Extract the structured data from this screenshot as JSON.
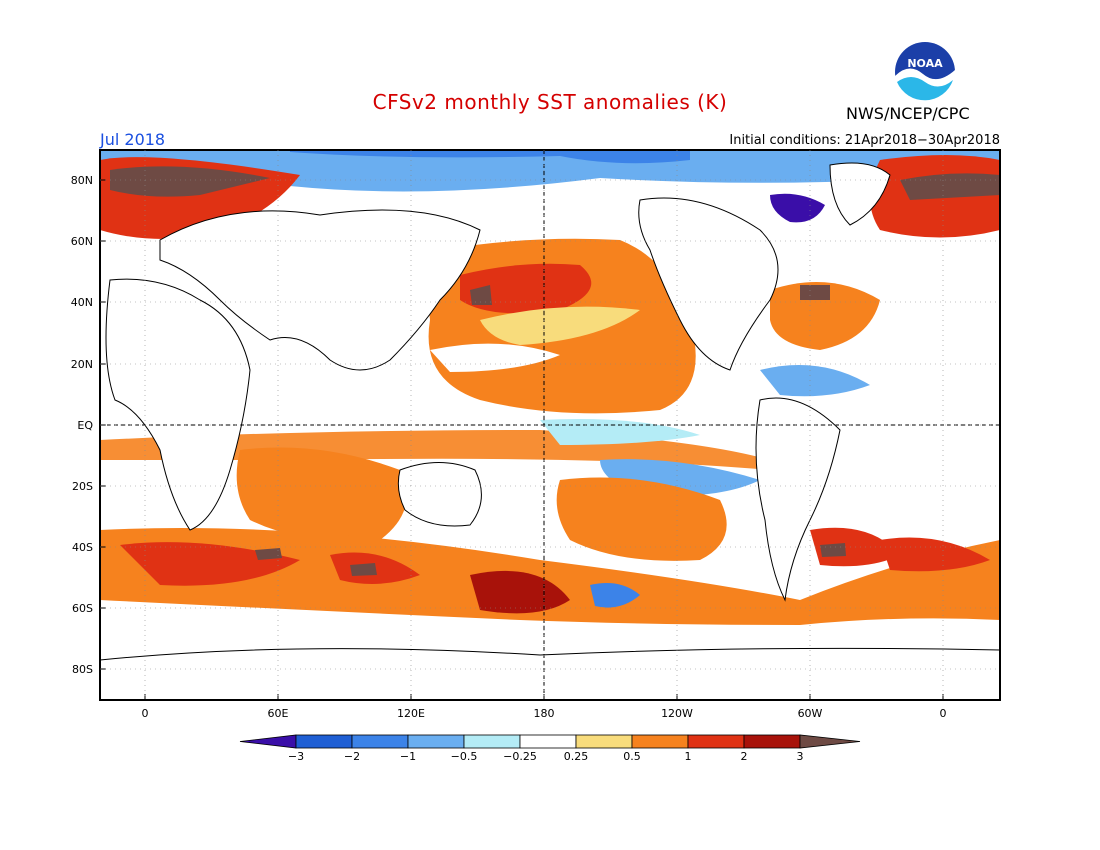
{
  "header": {
    "title": "CFSv2 monthly SST anomalies (K)",
    "month": "Jul 2018",
    "initial_conditions": "Initial conditions: 21Apr2018−30Apr2018",
    "agency": "NWS/NCEP/CPC",
    "logo_text": "NOAA"
  },
  "map": {
    "lat_labels": [
      "80N",
      "60N",
      "40N",
      "20N",
      "EQ",
      "20S",
      "40S",
      "60S",
      "80S"
    ],
    "lon_labels": [
      "0",
      "60E",
      "120E",
      "180",
      "120W",
      "60W",
      "0"
    ],
    "dashed_reference_lines": [
      "EQ",
      "180"
    ]
  },
  "colorbar": {
    "tick_labels": [
      "−3",
      "−2",
      "−1",
      "−0.5",
      "−0.25",
      "0.25",
      "0.5",
      "1",
      "2",
      "3"
    ],
    "colors": [
      "#3a0ea8",
      "#1f5fd4",
      "#3c83e8",
      "#6aaef0",
      "#b4ecf6",
      "#ffffff",
      "#f8dc7c",
      "#f6821e",
      "#e03214",
      "#a8120a",
      "#6e4a44"
    ]
  },
  "colors": {
    "land": "#ffffff",
    "title": "#d40000",
    "month": "#1a4fe0"
  }
}
